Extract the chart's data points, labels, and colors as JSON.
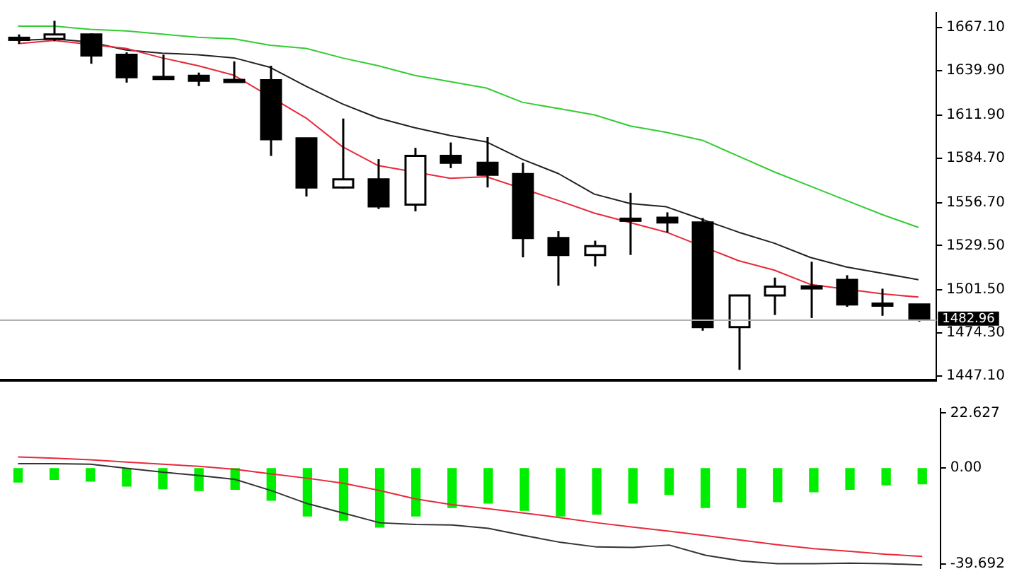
{
  "chart_data": [
    {
      "type": "candlestick",
      "tick_labels": "y",
      "categories": [
        null,
        null,
        null,
        null,
        null,
        null,
        null,
        null,
        null,
        null,
        null,
        null,
        null,
        null,
        null,
        null,
        null,
        null,
        null,
        null,
        null,
        null,
        null,
        null,
        null,
        null
      ],
      "ohlc": [
        [
          1660.5,
          1662.8,
          1656.9,
          1660.7
        ],
        [
          1660.0,
          1671.4,
          1658.6,
          1662.8
        ],
        [
          1662.8,
          1663.5,
          1644.3,
          1649.5
        ],
        [
          1650.0,
          1651.5,
          1632.4,
          1635.8
        ],
        [
          1636.0,
          1650.0,
          1634.4,
          1635.8
        ],
        [
          1636.7,
          1638.7,
          1630.2,
          1633.6
        ],
        [
          1633.9,
          1645.8,
          1633.0,
          1634.1
        ],
        [
          1633.9,
          1643.0,
          1586.1,
          1596.6
        ],
        [
          1597.2,
          1597.2,
          1560.5,
          1566.2
        ],
        [
          1566.2,
          1609.7,
          1565.6,
          1571.3
        ],
        [
          1571.3,
          1584.1,
          1552.6,
          1554.3
        ],
        [
          1555.4,
          1591.2,
          1551.1,
          1586.1
        ],
        [
          1586.1,
          1594.6,
          1578.4,
          1581.8
        ],
        [
          1581.8,
          1598.0,
          1566.2,
          1574.2
        ],
        [
          1574.7,
          1581.8,
          1522.1,
          1534.3
        ],
        [
          1534.3,
          1538.6,
          1504.2,
          1523.6
        ],
        [
          1523.6,
          1532.6,
          1516.4,
          1529.2
        ],
        [
          1546.3,
          1562.8,
          1523.6,
          1546.5
        ],
        [
          1547.1,
          1550.5,
          1537.7,
          1544.1
        ],
        [
          1544.1,
          1546.9,
          1475.8,
          1478.1
        ],
        [
          1478.1,
          1498.0,
          1451.1,
          1498.0
        ],
        [
          1498.0,
          1509.3,
          1485.7,
          1503.6
        ],
        [
          1503.6,
          1519.3,
          1483.8,
          1503.8
        ],
        [
          1507.9,
          1510.8,
          1490.9,
          1492.3
        ],
        [
          1492.9,
          1502.3,
          1485.2,
          1492.7
        ],
        [
          1492.3,
          1492.3,
          1481.5,
          1482.96
        ]
      ],
      "series": [
        {
          "type": "line",
          "color": "#e8293a",
          "values": [
            1657,
            1659,
            null,
            1654,
            1648,
            1643,
            1637,
            null,
            1610,
            1592,
            1580,
            null,
            1572,
            1573,
            null,
            1558,
            1550,
            1544,
            1538,
            null,
            1520,
            1514,
            1505,
            null,
            1499,
            1497
          ]
        },
        {
          "type": "line",
          "color": "#222222",
          "values": [
            1659,
            1660,
            1658,
            1653,
            1651,
            1650,
            1648,
            1642,
            1630,
            1619,
            1610,
            1604,
            1599,
            1595,
            1584,
            1575,
            1562,
            1556,
            1554,
            1546,
            1538,
            1531,
            1522,
            1516,
            1512,
            1508
          ]
        },
        {
          "type": "line",
          "color": "#33cc33",
          "values": [
            1668,
            1668,
            1666,
            1665,
            1663,
            1661,
            1660,
            1656,
            1654,
            1648,
            1643,
            1637,
            1633,
            1629,
            1620,
            1616,
            1612,
            1605,
            1601,
            1596,
            1586,
            1576,
            1567,
            1558,
            1549,
            1541
          ]
        }
      ],
      "ylim": [
        1444.5,
        1676.5
      ],
      "yticks": [
        {
          "value": 1667.1,
          "label": "1667.10"
        },
        {
          "value": 1639.9,
          "label": "1639.90"
        },
        {
          "value": 1611.9,
          "label": "1611.90"
        },
        {
          "value": 1584.7,
          "label": "1584.70"
        },
        {
          "value": 1556.7,
          "label": "1556.70"
        },
        {
          "value": 1529.5,
          "label": "1529.50"
        },
        {
          "value": 1501.5,
          "label": "1501.50"
        },
        {
          "value": 1474.3,
          "label": "1474.30"
        },
        {
          "value": 1447.1,
          "label": "1447.10"
        }
      ],
      "ref_lines": [
        {
          "axis": "y",
          "value": 1482.96,
          "label": "1482.96",
          "color": "#b0b0b0"
        }
      ]
    },
    {
      "type": "bar",
      "tick_labels": "y",
      "categories": [
        null,
        null,
        null,
        null,
        null,
        null,
        null,
        null,
        null,
        null,
        null,
        null,
        null,
        null,
        null,
        null,
        null,
        null,
        null,
        null,
        null,
        null,
        null,
        null,
        null,
        null
      ],
      "series": [
        {
          "color": "#00ee00",
          "values": [
            -5.9,
            -4.8,
            -5.5,
            -7.6,
            -8.7,
            -9.4,
            -8.9,
            -13.4,
            -19.9,
            -21.7,
            -24.5,
            -19.9,
            -16.4,
            -14.6,
            -17.6,
            -19.9,
            -19.2,
            -14.6,
            -11.0,
            -16.4,
            -16.4,
            -14.0,
            -9.9,
            -8.9,
            -7.1,
            -6.6
          ]
        },
        {
          "type": "line",
          "color": "#e8293a",
          "values": [
            4.5,
            4.0,
            3.3,
            2.4,
            1.5,
            0.6,
            -0.6,
            -2.5,
            -4.3,
            -6.4,
            -9.4,
            -12.9,
            -15.2,
            -16.9,
            -18.7,
            -20.6,
            -22.7,
            -24.5,
            -26.2,
            -28.0,
            -29.9,
            -31.8,
            -33.4,
            -34.5,
            -35.7,
            -36.6
          ]
        },
        {
          "type": "line",
          "color": "#333333",
          "values": [
            1.7,
            1.7,
            1.5,
            -0.2,
            -1.8,
            -3.2,
            -4.8,
            -9.4,
            -14.8,
            -18.7,
            -22.7,
            -23.4,
            -23.6,
            -25.0,
            -28.0,
            -30.8,
            -32.7,
            -32.9,
            -31.9,
            -36.1,
            -38.5,
            -39.6,
            -39.6,
            -39.4,
            -39.6,
            -40.1
          ]
        }
      ],
      "ylim": [
        -41.5,
        24.5
      ],
      "yticks": [
        22.627,
        {
          "value": 0,
          "label": "0.00"
        },
        -39.692
      ]
    }
  ]
}
